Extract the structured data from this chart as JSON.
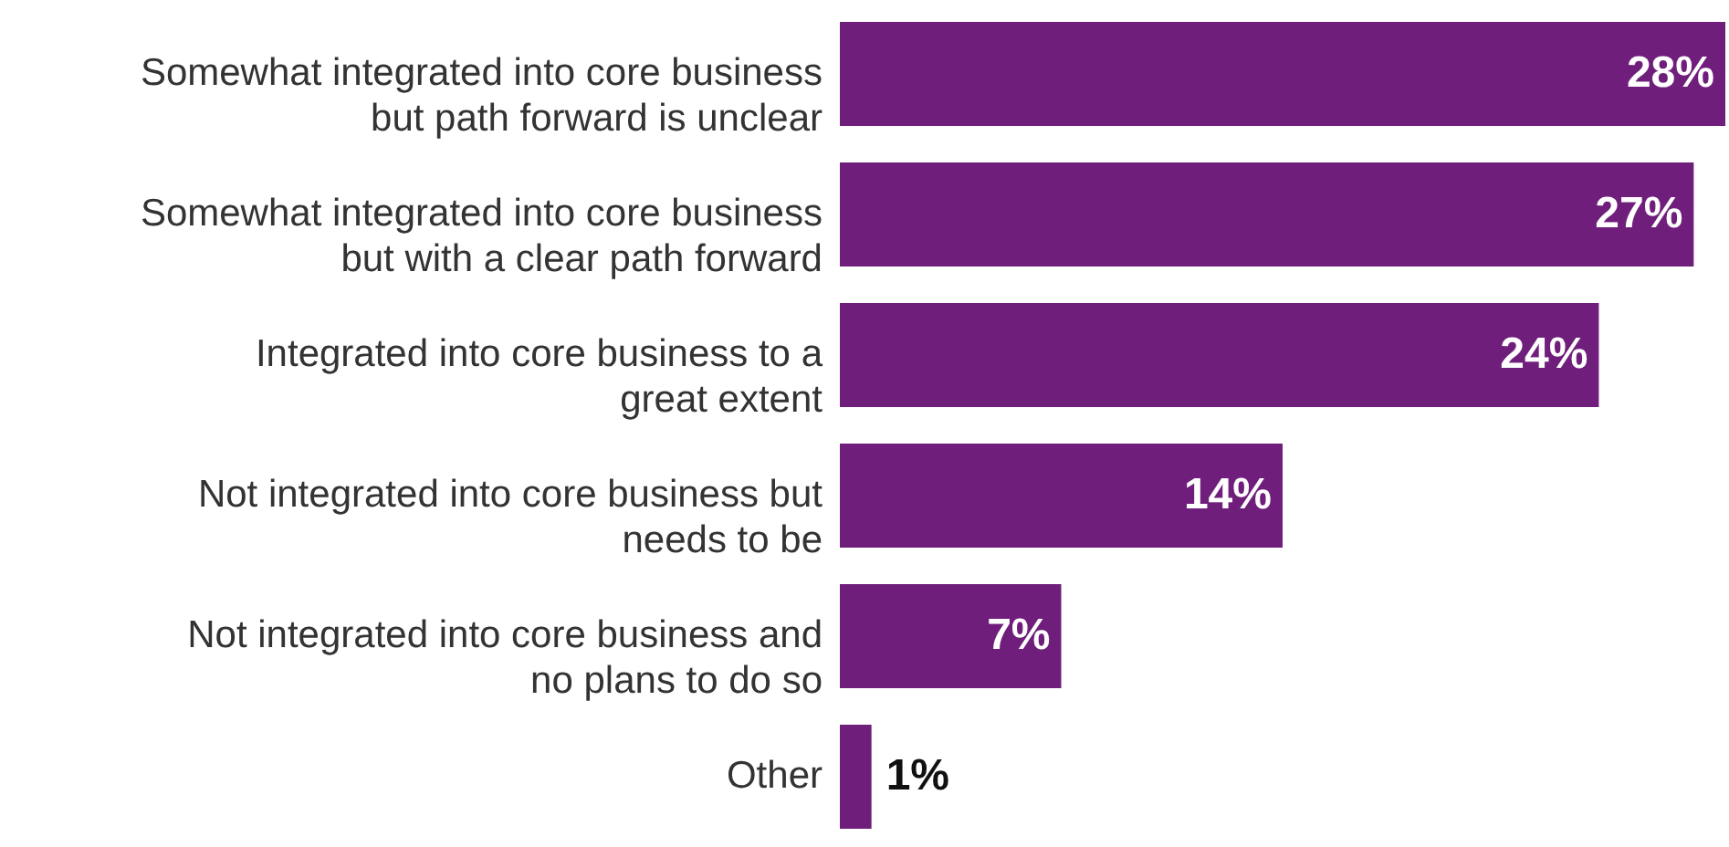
{
  "chart_data": {
    "type": "bar",
    "orientation": "horizontal",
    "categories": [
      "Somewhat integrated into core business but path forward is unclear",
      "Somewhat integrated into core business but with a clear path forward",
      "Integrated into core business to a great extent",
      "Not integrated into core business but needs to be",
      "Not integrated into core business and no plans to do so",
      "Other"
    ],
    "values": [
      28,
      27,
      24,
      14,
      7,
      1
    ],
    "value_labels": [
      "28%",
      "27%",
      "24%",
      "14%",
      "7%",
      "1%"
    ],
    "color": "#6f1f7b"
  }
}
